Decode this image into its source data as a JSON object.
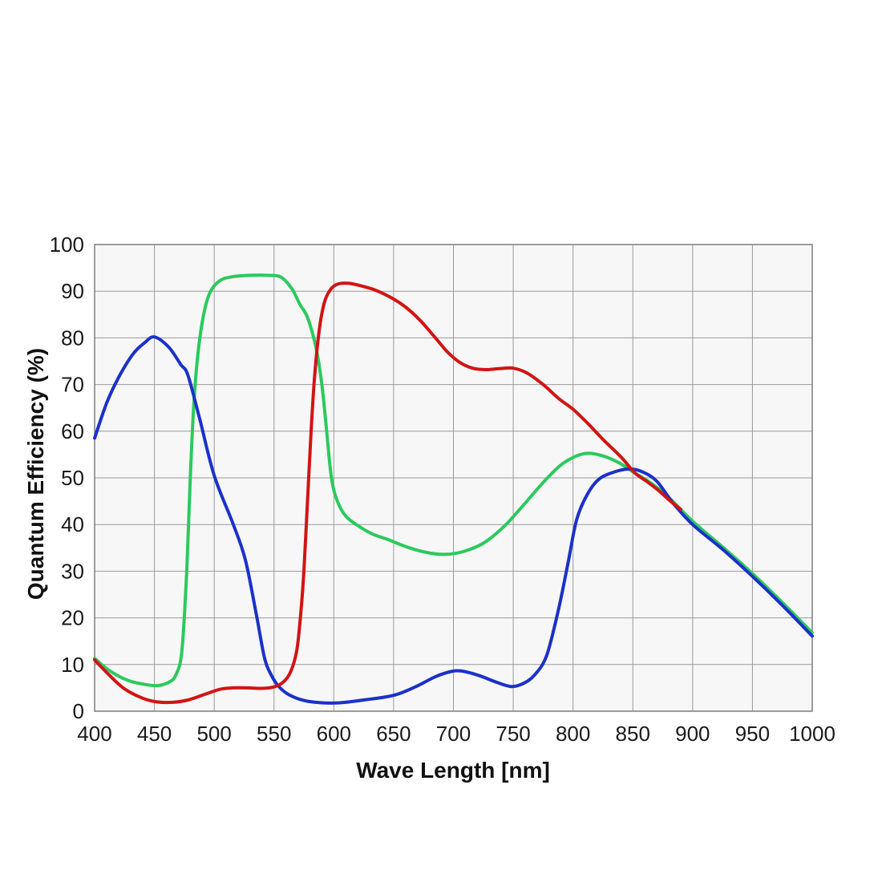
{
  "chart_data": {
    "type": "line",
    "title": "",
    "xlabel": "Wave Length [nm]",
    "ylabel": "Quantum Efficiency (%)",
    "xlim": [
      400,
      1000
    ],
    "ylim": [
      0,
      100
    ],
    "x_ticks": [
      400,
      450,
      500,
      550,
      600,
      650,
      700,
      750,
      800,
      850,
      900,
      950,
      1000
    ],
    "y_ticks": [
      0,
      10,
      20,
      30,
      40,
      50,
      60,
      70,
      80,
      90,
      100
    ],
    "grid": true,
    "legend_position": "none",
    "colors": {
      "page_background": "#ffffff",
      "plot_background": "#f7f7f7",
      "gridline": "#9a9a9a",
      "plot_border": "#7d7d7d",
      "text": "#1a1a1a"
    },
    "series": [
      {
        "name": "green-channel",
        "color": "#2cc95e",
        "points": [
          [
            400,
            11.3
          ],
          [
            413,
            8.6
          ],
          [
            428,
            6.6
          ],
          [
            443,
            5.7
          ],
          [
            453,
            5.5
          ],
          [
            462,
            6.2
          ],
          [
            468,
            7.8
          ],
          [
            473,
            13
          ],
          [
            477,
            30
          ],
          [
            480,
            50
          ],
          [
            483,
            66
          ],
          [
            487,
            78
          ],
          [
            492,
            86
          ],
          [
            497,
            90
          ],
          [
            505,
            92.3
          ],
          [
            515,
            93.1
          ],
          [
            530,
            93.4
          ],
          [
            545,
            93.4
          ],
          [
            556,
            93
          ],
          [
            565,
            90.5
          ],
          [
            572,
            87
          ],
          [
            578,
            84.4
          ],
          [
            585,
            78
          ],
          [
            590,
            70
          ],
          [
            594,
            60
          ],
          [
            598,
            50
          ],
          [
            603,
            45
          ],
          [
            610,
            41.8
          ],
          [
            620,
            39.8
          ],
          [
            632,
            38
          ],
          [
            645,
            36.8
          ],
          [
            660,
            35.3
          ],
          [
            676,
            34.1
          ],
          [
            692,
            33.6
          ],
          [
            708,
            34.2
          ],
          [
            725,
            36
          ],
          [
            742,
            39.5
          ],
          [
            758,
            44
          ],
          [
            775,
            49
          ],
          [
            790,
            52.8
          ],
          [
            803,
            54.7
          ],
          [
            813,
            55.3
          ],
          [
            825,
            54.7
          ],
          [
            838,
            53.3
          ],
          [
            852,
            51
          ],
          [
            865,
            48.9
          ],
          [
            880,
            45.8
          ],
          [
            900,
            40.7
          ],
          [
            925,
            35.2
          ],
          [
            950,
            29.5
          ],
          [
            975,
            23.3
          ],
          [
            1000,
            16.8
          ]
        ]
      },
      {
        "name": "blue-channel",
        "color": "#1b31c8",
        "points": [
          [
            400,
            58.5
          ],
          [
            410,
            66
          ],
          [
            420,
            71.5
          ],
          [
            432,
            76.5
          ],
          [
            442,
            79
          ],
          [
            450,
            80.2
          ],
          [
            462,
            78
          ],
          [
            472,
            74.3
          ],
          [
            478,
            72
          ],
          [
            488,
            62.5
          ],
          [
            500,
            50.5
          ],
          [
            516,
            40
          ],
          [
            526,
            32.5
          ],
          [
            535,
            21
          ],
          [
            542,
            11.5
          ],
          [
            548,
            7.6
          ],
          [
            554,
            5.3
          ],
          [
            562,
            3.6
          ],
          [
            575,
            2.3
          ],
          [
            590,
            1.8
          ],
          [
            605,
            1.8
          ],
          [
            625,
            2.4
          ],
          [
            650,
            3.4
          ],
          [
            668,
            5.2
          ],
          [
            685,
            7.4
          ],
          [
            698,
            8.5
          ],
          [
            707,
            8.6
          ],
          [
            722,
            7.6
          ],
          [
            735,
            6.3
          ],
          [
            748,
            5.3
          ],
          [
            758,
            5.9
          ],
          [
            768,
            7.8
          ],
          [
            778,
            12
          ],
          [
            788,
            22
          ],
          [
            796,
            32
          ],
          [
            803,
            41
          ],
          [
            812,
            46.5
          ],
          [
            822,
            49.8
          ],
          [
            835,
            51.3
          ],
          [
            847,
            51.9
          ],
          [
            858,
            51.3
          ],
          [
            870,
            49.3
          ],
          [
            883,
            44.8
          ],
          [
            900,
            40
          ],
          [
            925,
            34.7
          ],
          [
            950,
            28.9
          ],
          [
            975,
            22.7
          ],
          [
            1000,
            16.1
          ]
        ]
      },
      {
        "name": "red-channel",
        "color": "#d11414",
        "points": [
          [
            400,
            11
          ],
          [
            412,
            7.8
          ],
          [
            425,
            4.8
          ],
          [
            440,
            2.8
          ],
          [
            452,
            2
          ],
          [
            465,
            1.9
          ],
          [
            478,
            2.4
          ],
          [
            492,
            3.6
          ],
          [
            505,
            4.7
          ],
          [
            515,
            5
          ],
          [
            528,
            5
          ],
          [
            540,
            4.9
          ],
          [
            550,
            5.2
          ],
          [
            558,
            6.3
          ],
          [
            564,
            8.5
          ],
          [
            569,
            13
          ],
          [
            572,
            20
          ],
          [
            575,
            30
          ],
          [
            578,
            45
          ],
          [
            581,
            60
          ],
          [
            584,
            72
          ],
          [
            588,
            82
          ],
          [
            592,
            87.5
          ],
          [
            597,
            90.3
          ],
          [
            603,
            91.5
          ],
          [
            612,
            91.7
          ],
          [
            622,
            91.2
          ],
          [
            635,
            90.2
          ],
          [
            648,
            88.6
          ],
          [
            660,
            86.6
          ],
          [
            672,
            83.8
          ],
          [
            684,
            80.3
          ],
          [
            695,
            77
          ],
          [
            705,
            74.8
          ],
          [
            716,
            73.5
          ],
          [
            727,
            73.2
          ],
          [
            738,
            73.4
          ],
          [
            750,
            73.5
          ],
          [
            762,
            72.4
          ],
          [
            775,
            70
          ],
          [
            788,
            67
          ],
          [
            800,
            64.7
          ],
          [
            813,
            61.5
          ],
          [
            826,
            58
          ],
          [
            840,
            54.5
          ],
          [
            852,
            51
          ],
          [
            862,
            49.2
          ],
          [
            872,
            47.2
          ],
          [
            882,
            44.9
          ],
          [
            890,
            43.3
          ]
        ]
      }
    ]
  }
}
